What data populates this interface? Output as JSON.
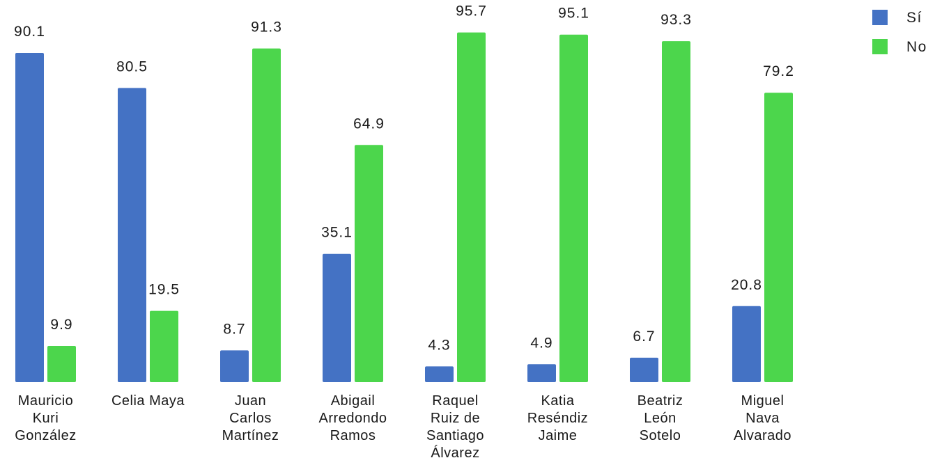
{
  "chart_data": {
    "type": "bar",
    "title": "",
    "xlabel": "",
    "ylabel": "",
    "ylim": [
      0,
      100
    ],
    "grid": false,
    "legend_position": "top-right",
    "categories": [
      [
        "Mauricio",
        "Kuri",
        "González"
      ],
      [
        "Celia Maya"
      ],
      [
        "Juan",
        "Carlos",
        "Martínez"
      ],
      [
        "Abigail",
        "Arredondo",
        "Ramos"
      ],
      [
        "Raquel",
        "Ruiz de",
        "Santiago",
        "Álvarez"
      ],
      [
        "Katia",
        "Reséndiz",
        "Jaime"
      ],
      [
        "Beatriz",
        "León",
        "Sotelo"
      ],
      [
        "Miguel",
        "Nava",
        "Alvarado"
      ]
    ],
    "series": [
      {
        "name": "Sí",
        "color": "#4472c4",
        "values": [
          90.1,
          80.5,
          8.7,
          35.1,
          4.3,
          4.9,
          6.7,
          20.8
        ],
        "labels": [
          "90.1",
          "80.5",
          "8.7",
          "35.1",
          "4.3",
          "4.9",
          "6.7",
          "20.8"
        ]
      },
      {
        "name": "No",
        "color": "#4cd64c",
        "values": [
          9.9,
          19.5,
          91.3,
          64.9,
          95.7,
          95.1,
          93.3,
          79.2
        ],
        "labels": [
          "9.9",
          "19.5",
          "91.3",
          "64.9",
          "95.7",
          "95.1",
          "93.3",
          "79.2"
        ]
      }
    ]
  }
}
